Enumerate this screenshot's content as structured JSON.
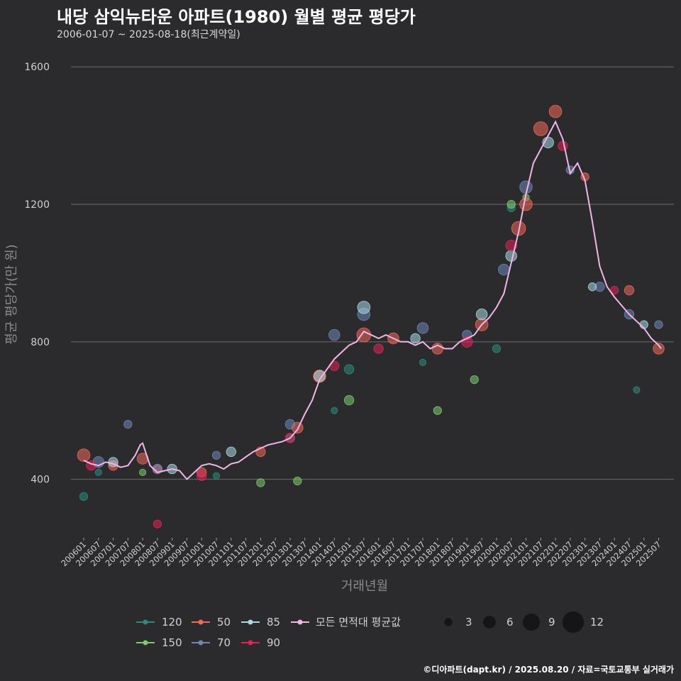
{
  "chart_data": {
    "type": "scatter",
    "title": "내당 삼익뉴타운 아파트(1980) 월별 평균 평당가",
    "subtitle": "2006-01-07 ~ 2025-08-18(최근계약일)",
    "xlabel": "거래년월",
    "ylabel": "평균 평당가(만 원)",
    "ylim": [
      230,
      1650
    ],
    "yticks": [
      400,
      800,
      1200,
      1600
    ],
    "xlim": [
      "200601",
      "202508"
    ],
    "xticks": [
      "200601",
      "200607",
      "200701",
      "200707",
      "200801",
      "200807",
      "200901",
      "200907",
      "201001",
      "201007",
      "201101",
      "201107",
      "201201",
      "201207",
      "201301",
      "201307",
      "201401",
      "201407",
      "201501",
      "201507",
      "201601",
      "201607",
      "201701",
      "201707",
      "201801",
      "201807",
      "201901",
      "201907",
      "202001",
      "202007",
      "202101",
      "202107",
      "202201",
      "202207",
      "202301",
      "202307",
      "202401",
      "202407",
      "202501",
      "202507"
    ],
    "grid": true,
    "average_line": {
      "name": "모든 면적대 평균값",
      "color": "#f1b6e6",
      "x": [
        "200601",
        "200604",
        "200607",
        "200610",
        "200701",
        "200704",
        "200707",
        "200710",
        "200712",
        "200801",
        "200804",
        "200807",
        "200810",
        "200901",
        "200904",
        "200907",
        "200910",
        "201001",
        "201004",
        "201007",
        "201010",
        "201101",
        "201104",
        "201107",
        "201110",
        "201201",
        "201204",
        "201207",
        "201210",
        "201301",
        "201304",
        "201307",
        "201310",
        "201401",
        "201404",
        "201407",
        "201410",
        "201501",
        "201504",
        "201507",
        "201510",
        "201601",
        "201604",
        "201607",
        "201610",
        "201701",
        "201704",
        "201707",
        "201710",
        "201801",
        "201804",
        "201807",
        "201810",
        "201901",
        "201904",
        "201907",
        "201910",
        "202001",
        "202004",
        "202007",
        "202010",
        "202101",
        "202104",
        "202107",
        "202110",
        "202201",
        "202204",
        "202207",
        "202210",
        "202301",
        "202304",
        "202307",
        "202310",
        "202401",
        "202404",
        "202407",
        "202410",
        "202501",
        "202504",
        "202507",
        "202508"
      ],
      "values": [
        455,
        445,
        440,
        450,
        445,
        435,
        440,
        470,
        500,
        505,
        440,
        420,
        425,
        430,
        425,
        400,
        420,
        440,
        445,
        440,
        430,
        445,
        450,
        465,
        480,
        490,
        500,
        505,
        510,
        520,
        545,
        590,
        630,
        690,
        720,
        750,
        770,
        790,
        800,
        830,
        820,
        810,
        820,
        810,
        800,
        800,
        790,
        800,
        780,
        790,
        780,
        780,
        800,
        810,
        820,
        850,
        870,
        900,
        940,
        1030,
        1120,
        1230,
        1320,
        1360,
        1400,
        1440,
        1390,
        1290,
        1320,
        1270,
        1150,
        1020,
        960,
        930,
        905,
        880,
        860,
        840,
        810,
        790,
        780
      ]
    },
    "series": [
      {
        "name": "120",
        "color": "#2e8a7c",
        "x": [
          "200601",
          "200607",
          "201007",
          "201301",
          "201407",
          "201501",
          "201707",
          "202001",
          "202007",
          "202410"
        ],
        "values": [
          350,
          420,
          410,
          520,
          600,
          720,
          740,
          780,
          1190,
          660
        ],
        "counts": [
          3,
          2,
          2,
          3,
          2,
          4,
          2,
          3,
          3,
          2
        ]
      },
      {
        "name": "150",
        "color": "#7ecb6b",
        "x": [
          "200801",
          "201201",
          "201304",
          "201501",
          "201801",
          "201904",
          "202007",
          "202101"
        ],
        "values": [
          420,
          390,
          395,
          630,
          600,
          690,
          1200,
          1220
        ],
        "counts": [
          2,
          3,
          3,
          4,
          3,
          3,
          3,
          2
        ]
      },
      {
        "name": "50",
        "color": "#f06a5a",
        "x": [
          "200601",
          "200701",
          "200801",
          "200807",
          "201001",
          "201201",
          "201304",
          "201401",
          "201507",
          "201607",
          "201801",
          "201907",
          "202010",
          "202101",
          "202107",
          "202201",
          "202301",
          "202407",
          "202507"
        ],
        "values": [
          470,
          440,
          460,
          430,
          420,
          480,
          550,
          700,
          820,
          810,
          780,
          850,
          1130,
          1200,
          1420,
          1470,
          1280,
          950,
          780
        ],
        "counts": [
          6,
          4,
          5,
          3,
          4,
          4,
          5,
          6,
          7,
          5,
          5,
          6,
          7,
          6,
          7,
          6,
          3,
          4,
          5
        ]
      },
      {
        "name": "70",
        "color": "#6f86b6",
        "x": [
          "200607",
          "200707",
          "200807",
          "201007",
          "201301",
          "201407",
          "201507",
          "201707",
          "201901",
          "202004",
          "202101",
          "202207",
          "202307",
          "202407",
          "202507"
        ],
        "values": [
          450,
          560,
          430,
          470,
          560,
          820,
          880,
          840,
          820,
          1010,
          1250,
          1300,
          960,
          880,
          850
        ],
        "counts": [
          5,
          3,
          4,
          3,
          4,
          5,
          6,
          5,
          4,
          5,
          6,
          3,
          4,
          4,
          3
        ]
      },
      {
        "name": "85",
        "color": "#a9d9e4",
        "x": [
          "200701",
          "200901",
          "201101",
          "201401",
          "201507",
          "201704",
          "201907",
          "202007",
          "202110",
          "202304",
          "202501"
        ],
        "values": [
          450,
          430,
          480,
          700,
          900,
          810,
          880,
          1050,
          1380,
          960,
          850
        ],
        "counts": [
          4,
          4,
          4,
          5,
          6,
          4,
          5,
          5,
          5,
          3,
          3
        ]
      },
      {
        "name": "90",
        "color": "#e0245a",
        "x": [
          "200604",
          "200807",
          "201001",
          "201301",
          "201407",
          "201601",
          "201901",
          "202007",
          "202204",
          "202401"
        ],
        "values": [
          440,
          270,
          410,
          520,
          730,
          780,
          800,
          1080,
          1370,
          950
        ],
        "counts": [
          4,
          3,
          4,
          4,
          4,
          4,
          5,
          5,
          4,
          3
        ]
      }
    ],
    "size_legend": {
      "values": [
        3,
        6,
        9,
        12
      ]
    },
    "legend_position": "bottom"
  },
  "caption": "©디아파트(dapt.kr) / 2025.08.20 / 자료=국토교통부 실거래가"
}
